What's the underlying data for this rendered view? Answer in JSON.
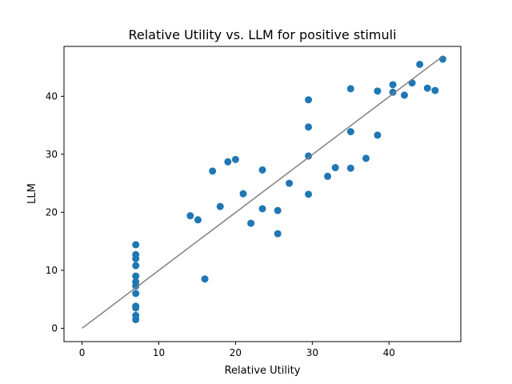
{
  "chart_data": {
    "type": "scatter",
    "title": "Relative Utility vs. LLM for positive stimuli",
    "xlabel": "Relative Utility",
    "ylabel": "LLM",
    "xlim": [
      -2.35,
      49.35
    ],
    "ylim": [
      -2.3,
      48.6
    ],
    "xticks": [
      0,
      10,
      20,
      30,
      40
    ],
    "yticks": [
      0,
      10,
      20,
      30,
      40
    ],
    "grid": false,
    "legend": "none",
    "series": [
      {
        "kind": "points",
        "color": "#1f77b4",
        "points": [
          [
            7,
            1.5
          ],
          [
            7,
            2.2
          ],
          [
            7,
            3.5
          ],
          [
            7,
            3.8
          ],
          [
            7,
            6.0
          ],
          [
            7,
            7.3
          ],
          [
            7,
            8.0
          ],
          [
            7,
            9.0
          ],
          [
            7,
            10.8
          ],
          [
            7,
            12.0
          ],
          [
            7,
            12.7
          ],
          [
            7,
            14.4
          ],
          [
            14.1,
            19.4
          ],
          [
            15.1,
            18.7
          ],
          [
            16.0,
            8.5
          ],
          [
            17.0,
            27.1
          ],
          [
            18.0,
            21.0
          ],
          [
            19.0,
            28.7
          ],
          [
            20.0,
            29.1
          ],
          [
            21.0,
            23.2
          ],
          [
            22.0,
            18.1
          ],
          [
            23.5,
            27.3
          ],
          [
            23.5,
            20.6
          ],
          [
            25.5,
            20.3
          ],
          [
            25.5,
            16.3
          ],
          [
            27.0,
            25.0
          ],
          [
            29.5,
            39.4
          ],
          [
            29.5,
            34.7
          ],
          [
            29.5,
            29.7
          ],
          [
            29.5,
            23.1
          ],
          [
            32.0,
            26.2
          ],
          [
            33.0,
            27.7
          ],
          [
            35.0,
            41.3
          ],
          [
            35.0,
            33.9
          ],
          [
            35.0,
            27.6
          ],
          [
            37.0,
            29.3
          ],
          [
            38.5,
            40.9
          ],
          [
            38.5,
            33.3
          ],
          [
            40.5,
            42.0
          ],
          [
            40.5,
            40.7
          ],
          [
            42.0,
            40.2
          ],
          [
            43.0,
            42.3
          ],
          [
            44.0,
            45.5
          ],
          [
            45.0,
            41.4
          ],
          [
            46.0,
            41.0
          ],
          [
            47.0,
            46.4
          ]
        ]
      },
      {
        "kind": "line",
        "color": "#808080",
        "points": [
          [
            0,
            0
          ],
          [
            47,
            46.9
          ]
        ]
      }
    ]
  }
}
